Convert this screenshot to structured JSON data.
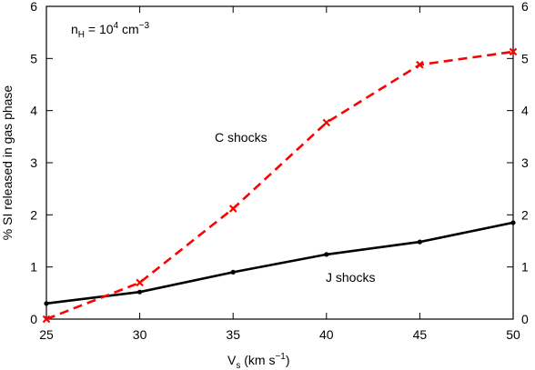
{
  "chart_data": {
    "type": "line",
    "title": "",
    "xlabel": {
      "base": "V",
      "sub": "s",
      "rest": " (km s",
      "sup": "−1",
      "close": ")"
    },
    "ylabel": "% SI released in gas phase",
    "annotation": {
      "prefix": "n",
      "sub": "H",
      "mid": " = 10",
      "sup1": "4",
      "unit": " cm",
      "sup2": "−3"
    },
    "xlim": [
      25,
      50
    ],
    "ylim": [
      0,
      6
    ],
    "x_ticks": [
      25,
      30,
      35,
      40,
      45,
      50
    ],
    "y_ticks": [
      0,
      1,
      2,
      3,
      4,
      5,
      6
    ],
    "grid": false,
    "series": [
      {
        "name": "J shocks",
        "style": "solid",
        "marker": "dot",
        "color": "#000000",
        "x": [
          25,
          30,
          35,
          40,
          45,
          50
        ],
        "y": [
          0.3,
          0.52,
          0.9,
          1.24,
          1.48,
          1.85
        ]
      },
      {
        "name": "C shocks",
        "style": "dashed",
        "marker": "x",
        "color": "#ff0000",
        "x": [
          25,
          30,
          35,
          40,
          45,
          50
        ],
        "y": [
          0.0,
          0.7,
          2.12,
          3.77,
          4.88,
          5.13
        ]
      }
    ]
  }
}
